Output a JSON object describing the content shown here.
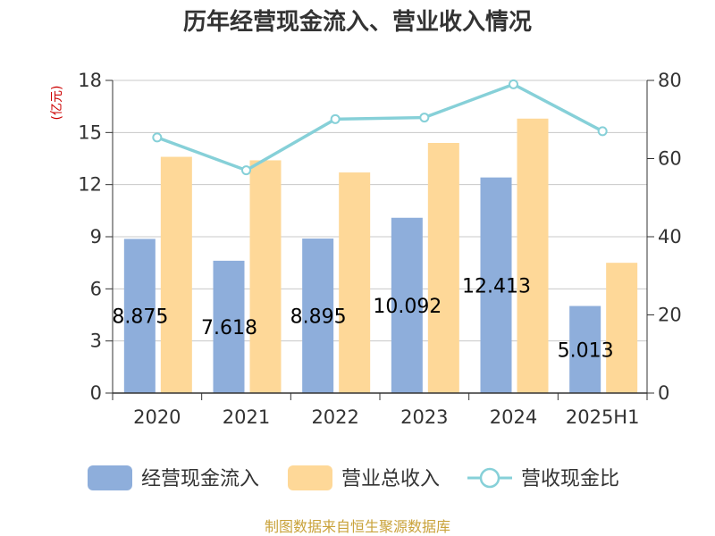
{
  "chart_data": {
    "type": "bar",
    "title": "历年经营现金流入、营业收入情况",
    "categories": [
      "2020",
      "2021",
      "2022",
      "2023",
      "2024",
      "2025H1"
    ],
    "left_axis": {
      "unit": "(亿元)",
      "ticks": [
        0,
        3,
        6,
        9,
        12,
        15,
        18
      ],
      "ylim": [
        0,
        18
      ]
    },
    "right_axis": {
      "unit": "%",
      "ticks": [
        0,
        20,
        40,
        60,
        80
      ],
      "ylim": [
        0,
        80
      ]
    },
    "series": [
      {
        "name": "经营现金流入",
        "type": "bar",
        "axis": "left",
        "color": "#8eaedb",
        "values": [
          8.875,
          7.618,
          8.895,
          10.092,
          12.413,
          5.013
        ],
        "labels": [
          "8.875",
          "7.618",
          "8.895",
          "10.092",
          "12.413",
          "5.013"
        ]
      },
      {
        "name": "营业总收入",
        "type": "bar",
        "axis": "left",
        "color": "#fed898",
        "values": [
          13.6,
          13.4,
          12.7,
          14.4,
          15.8,
          7.5
        ]
      },
      {
        "name": "营收现金比",
        "type": "line",
        "axis": "right",
        "color": "#86d0d8",
        "values": [
          65.4,
          57.0,
          70.1,
          70.5,
          79.0,
          67.0
        ]
      }
    ],
    "grid": true,
    "legend_position": "bottom"
  },
  "footer": {
    "source": "制图数据来自恒生聚源数据库"
  }
}
